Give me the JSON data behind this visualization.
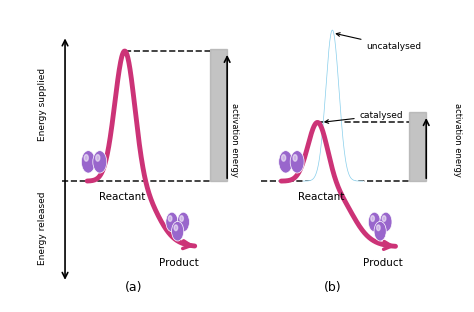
{
  "bg_color": "#add8e6",
  "panel_bg": "#87ceeb",
  "curve_color": "#cc3377",
  "curve_lw": 3.5,
  "dashed_color": "#222222",
  "arrow_color": "#222222",
  "label_a": "(a)",
  "label_b": "(b)",
  "text_reactant": "Reactant",
  "text_product": "Product",
  "text_energy_supplied": "Energy supplied",
  "text_energy_released": "Energy released",
  "text_activation": "activation energy",
  "text_uncatalysed": "uncatalysed",
  "text_catalysed": "catalysed",
  "molecule_color": "#9966cc",
  "white_peak_color": "#ffffff",
  "gray_bar_color": "#aaaaaa"
}
